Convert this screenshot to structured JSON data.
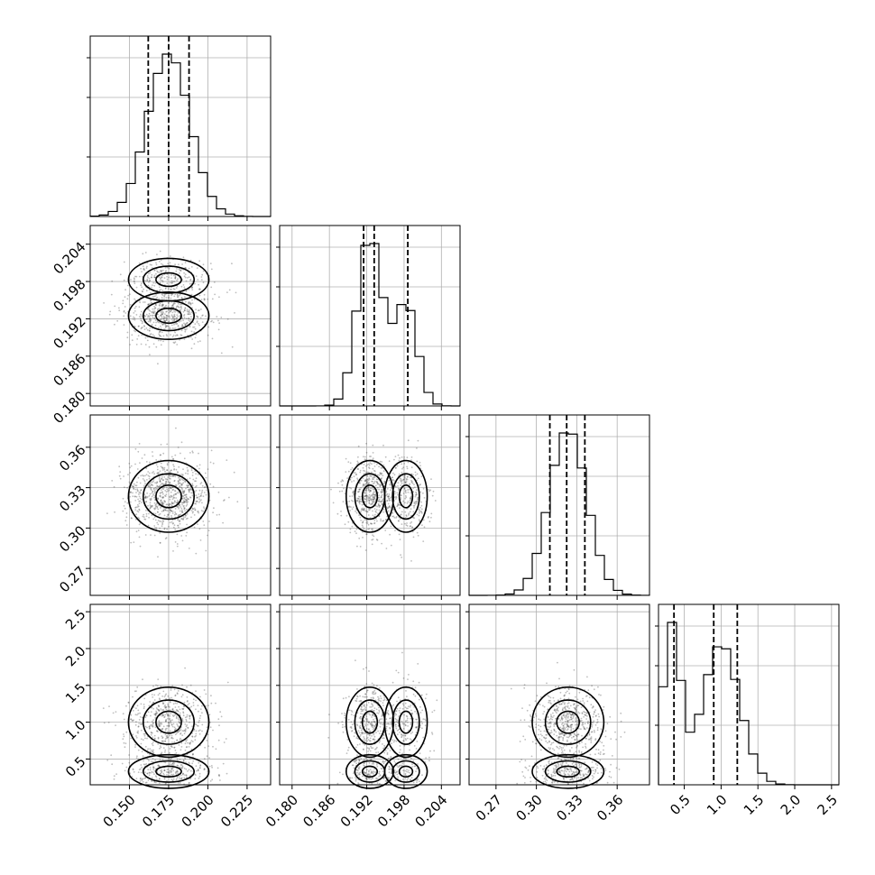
{
  "chart_data": {
    "type": "corner",
    "title": "",
    "grid": true,
    "parameters": [
      {
        "name": "",
        "range": [
          0.125,
          0.24
        ],
        "ticks": [
          0.15,
          0.175,
          0.2,
          0.225
        ],
        "tick_labels": [
          "0.150",
          "0.175",
          "0.200",
          "0.225"
        ],
        "hist": {
          "mean": 0.175,
          "sd": 0.0135,
          "peak_mode": "single"
        },
        "quantiles": [
          0.162,
          0.175,
          0.188
        ]
      },
      {
        "name": "",
        "range": [
          0.178,
          0.207
        ],
        "ticks": [
          0.18,
          0.186,
          0.192,
          0.198,
          0.204
        ],
        "tick_labels": [
          "0.180",
          "0.186",
          "0.192",
          "0.198",
          "0.204"
        ],
        "hist": {
          "components": [
            {
              "mean": 0.1925,
              "sd": 0.002,
              "weight": 0.65
            },
            {
              "mean": 0.1983,
              "sd": 0.0018,
              "weight": 0.35
            }
          ]
        },
        "quantiles": [
          0.1915,
          0.1932,
          0.1986
        ]
      },
      {
        "name": "",
        "range": [
          0.25,
          0.384
        ],
        "ticks": [
          0.27,
          0.3,
          0.33,
          0.36
        ],
        "tick_labels": [
          "0.27",
          "0.30",
          "0.33",
          "0.36"
        ],
        "hist": {
          "mean": 0.3235,
          "sd": 0.014,
          "peak_mode": "single"
        },
        "quantiles": [
          0.31,
          0.3225,
          0.336
        ]
      },
      {
        "name": "",
        "range": [
          0.15,
          2.6
        ],
        "ticks": [
          0.5,
          1.0,
          1.5,
          2.0,
          2.5
        ],
        "tick_labels": [
          "0.5",
          "1.0",
          "1.5",
          "2.0",
          "2.5"
        ],
        "hist": {
          "components": [
            {
              "mean": 0.33,
              "sd": 0.12,
              "weight": 0.35
            },
            {
              "mean": 1.0,
              "sd": 0.25,
              "weight": 0.65
            }
          ]
        },
        "quantiles": [
          0.36,
          0.9,
          1.22
        ]
      }
    ],
    "contour_levels": [
      "39%",
      "86%",
      "99%"
    ]
  }
}
